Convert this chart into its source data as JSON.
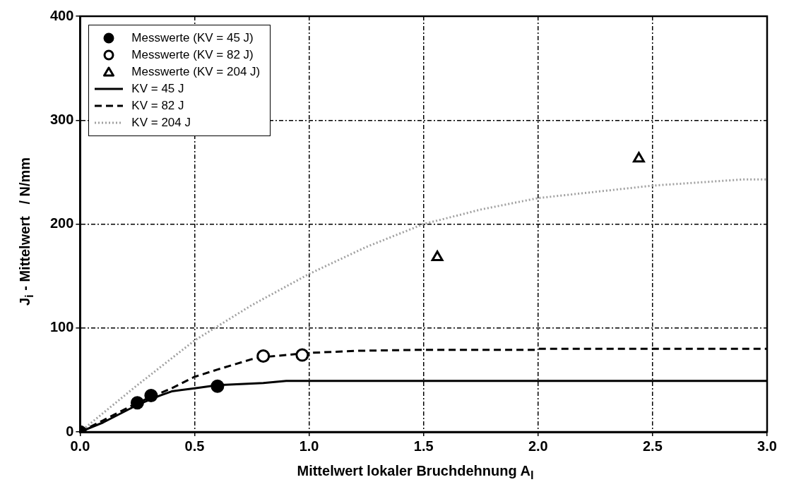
{
  "chart_data": {
    "type": "scatter",
    "xlabel": "Mittelwert lokaler Bruchdehnung A$_{l}$",
    "ylabel": "J$_{i}$ - Mittelwert   / N/mm",
    "xlim": [
      0,
      3
    ],
    "xticks": [
      {
        "value": 0,
        "label": "0.0"
      },
      {
        "value": 0.5,
        "label": "0.5"
      },
      {
        "value": 1,
        "label": "1.0"
      },
      {
        "value": 1.5,
        "label": "1.5"
      },
      {
        "value": 2,
        "label": "2.0"
      },
      {
        "value": 2.5,
        "label": "2.5"
      },
      {
        "value": 3,
        "label": "3.0"
      }
    ],
    "ylim": [
      0,
      400
    ],
    "yticks": [
      0,
      100,
      200,
      300,
      400
    ],
    "grid": true,
    "legend": "top left",
    "series": [
      {
        "name": "Messwerte (KV = 45 J)",
        "marker": "circle",
        "color": "#000000",
        "x": [
          0,
          0.25,
          0.31,
          0.6
        ],
        "values": [
          0,
          28,
          35,
          44
        ]
      },
      {
        "name": "Messwerte (KV = 82 J)",
        "marker": "circle",
        "color": "#000000",
        "x": [
          0.8,
          0.97
        ],
        "values": [
          73,
          74
        ]
      },
      {
        "name": "Messwerte (KV = 204 J)",
        "marker": "triangle",
        "color": "#000000",
        "x": [
          1.56,
          2.44
        ],
        "values": [
          168,
          263
        ]
      },
      {
        "name": "KV = 45 J",
        "type": "line",
        "line_style": "solid",
        "color": "#000000",
        "x": [
          0,
          0.1,
          0.25,
          0.35,
          0.4,
          0.5,
          0.6,
          0.8,
          0.9,
          1.0,
          3.0
        ],
        "values": [
          0,
          9,
          26,
          35,
          39,
          42,
          45,
          47,
          49,
          49,
          49
        ]
      },
      {
        "name": "KV = 82 J",
        "type": "line",
        "line_style": "dashed",
        "color": "#000000",
        "x": [
          0,
          0.1,
          0.25,
          0.4,
          0.5,
          0.6,
          0.75,
          0.8,
          1.0,
          1.2,
          1.5,
          1.99,
          2.0,
          3.0
        ],
        "values": [
          0,
          11,
          28,
          42,
          53,
          60,
          70,
          72,
          76,
          78,
          79,
          79,
          80,
          80
        ]
      },
      {
        "name": "KV = 204 J",
        "type": "line",
        "line_style": "dotted",
        "color": "#a0a0a0",
        "x": [
          0,
          0.25,
          0.5,
          0.75,
          1.0,
          1.25,
          1.5,
          1.75,
          2.0,
          2.5,
          2.9,
          3.0
        ],
        "values": [
          0,
          45,
          88,
          122,
          152,
          178,
          200,
          214,
          225,
          237,
          243,
          243
        ]
      }
    ]
  }
}
